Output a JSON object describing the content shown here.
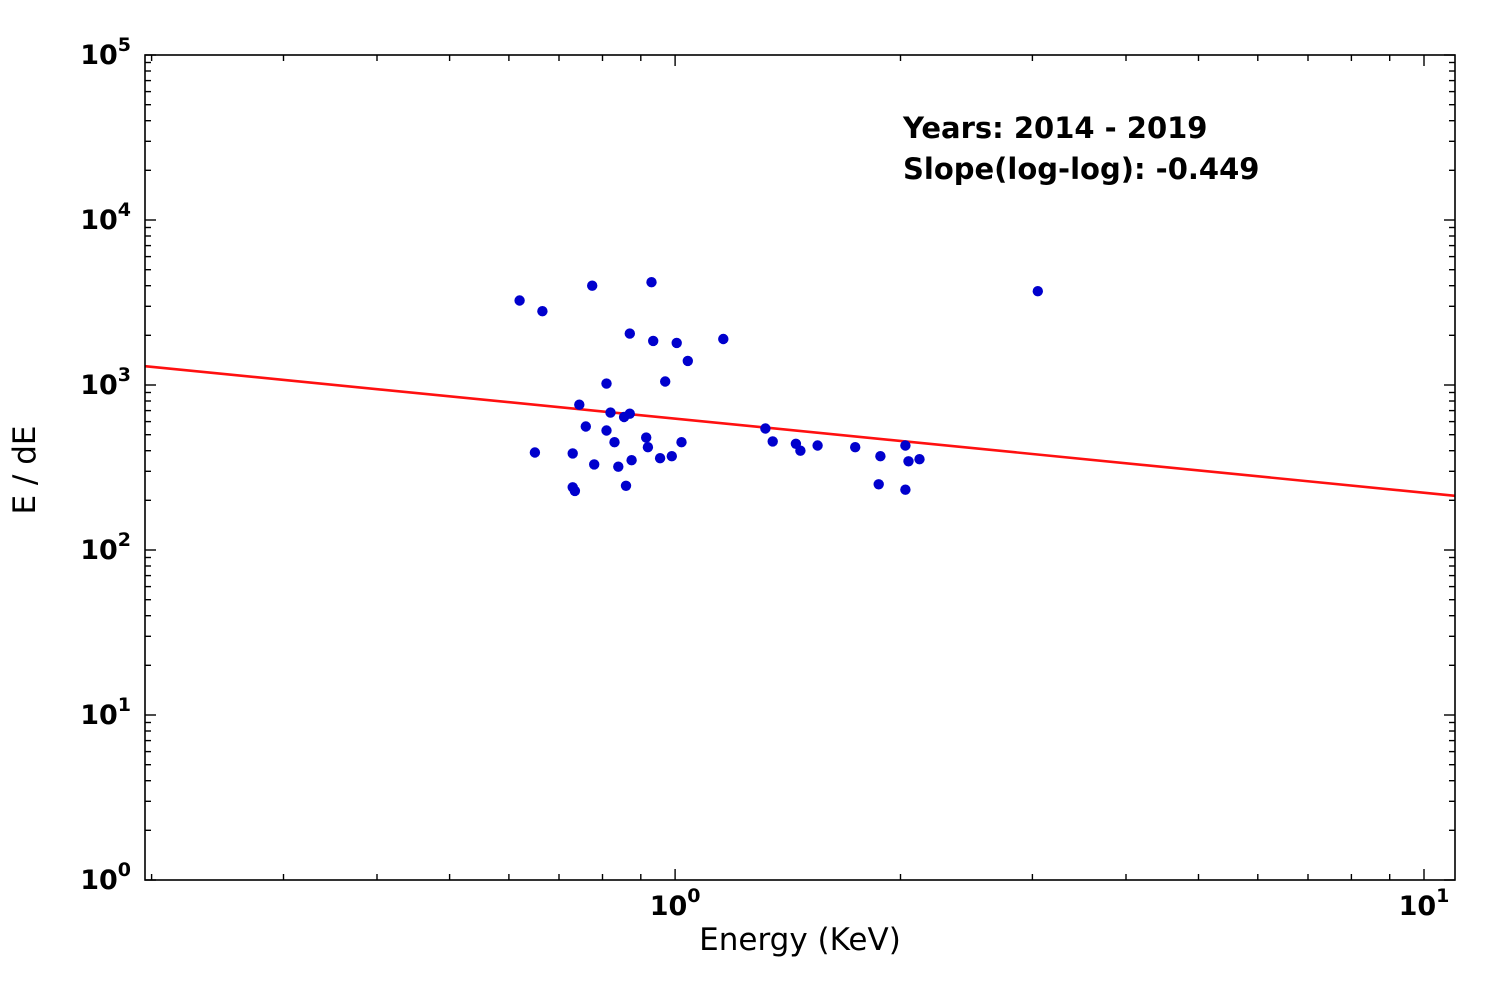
{
  "figure": {
    "background": "#ffffff"
  },
  "chart_data": {
    "type": "scatter",
    "title": "",
    "xlabel": "Energy (KeV)",
    "ylabel": "E / dE",
    "xscale": "log",
    "yscale": "log",
    "xlim": [
      0.196,
      11.0
    ],
    "ylim": [
      1,
      100000
    ],
    "grid": false,
    "legend": "none",
    "annotation": {
      "line1": "Years: 2014 - 2019",
      "line2": "Slope(log-log): -0.449"
    },
    "marker_color": "#0000cd",
    "line_color": "#ff1010",
    "axis_color": "#000000",
    "x_major_ticks": [
      {
        "value": 1,
        "label_base": "10",
        "label_exp": "0"
      },
      {
        "value": 10,
        "label_base": "10",
        "label_exp": "1"
      }
    ],
    "y_major_ticks": [
      {
        "value": 1,
        "label_base": "10",
        "label_exp": "0"
      },
      {
        "value": 10,
        "label_base": "10",
        "label_exp": "1"
      },
      {
        "value": 100,
        "label_base": "10",
        "label_exp": "2"
      },
      {
        "value": 1000,
        "label_base": "10",
        "label_exp": "3"
      },
      {
        "value": 10000,
        "label_base": "10",
        "label_exp": "4"
      },
      {
        "value": 100000,
        "label_base": "10",
        "label_exp": "5"
      }
    ],
    "fit_line": {
      "slope_loglog": -0.449,
      "x": [
        0.196,
        11.0
      ],
      "y": [
        1300,
        213
      ]
    },
    "points": [
      [
        0.62,
        3250
      ],
      [
        0.665,
        2800
      ],
      [
        0.775,
        4000
      ],
      [
        0.93,
        4200
      ],
      [
        0.87,
        2050
      ],
      [
        0.935,
        1850
      ],
      [
        1.16,
        1900
      ],
      [
        1.005,
        1800
      ],
      [
        1.04,
        1400
      ],
      [
        0.97,
        1050
      ],
      [
        0.81,
        1020
      ],
      [
        0.745,
        760
      ],
      [
        0.82,
        680
      ],
      [
        0.87,
        670
      ],
      [
        0.855,
        640
      ],
      [
        0.76,
        560
      ],
      [
        0.81,
        530
      ],
      [
        0.915,
        480
      ],
      [
        0.83,
        450
      ],
      [
        0.92,
        420
      ],
      [
        0.65,
        390
      ],
      [
        0.73,
        385
      ],
      [
        1.02,
        450
      ],
      [
        0.955,
        360
      ],
      [
        0.99,
        370
      ],
      [
        0.78,
        330
      ],
      [
        0.84,
        320
      ],
      [
        0.875,
        350
      ],
      [
        0.73,
        240
      ],
      [
        0.86,
        245
      ],
      [
        0.735,
        228
      ],
      [
        1.32,
        545
      ],
      [
        1.35,
        455
      ],
      [
        1.45,
        440
      ],
      [
        1.47,
        400
      ],
      [
        1.55,
        430
      ],
      [
        1.74,
        420
      ],
      [
        1.88,
        370
      ],
      [
        2.03,
        430
      ],
      [
        2.05,
        345
      ],
      [
        2.12,
        355
      ],
      [
        1.87,
        250
      ],
      [
        2.03,
        232
      ],
      [
        3.05,
        3700
      ]
    ]
  }
}
